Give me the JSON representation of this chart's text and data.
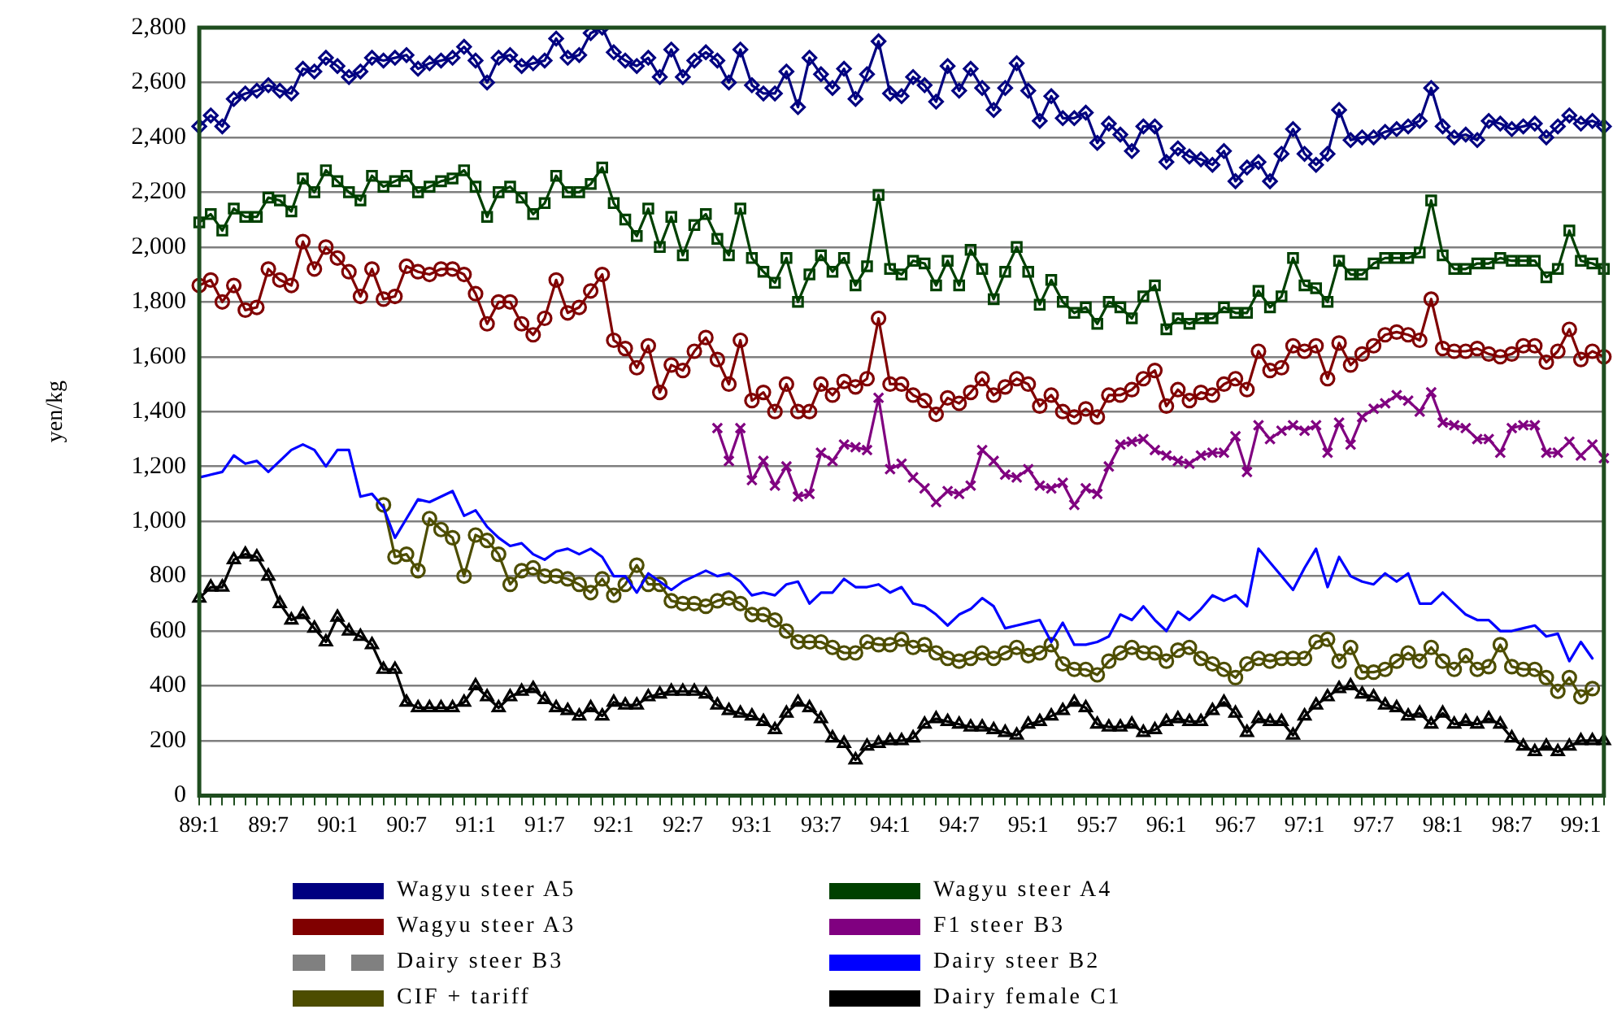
{
  "chart_data": {
    "type": "line",
    "ylabel": "yen/kg",
    "categories": [
      "89:1",
      null,
      null,
      null,
      null,
      null,
      "89:7",
      null,
      null,
      null,
      null,
      null,
      "90:1",
      null,
      null,
      null,
      null,
      null,
      "90:7",
      null,
      null,
      null,
      null,
      null,
      "91:1",
      null,
      null,
      null,
      null,
      null,
      "91:7",
      null,
      null,
      null,
      null,
      null,
      "92:1",
      null,
      null,
      null,
      null,
      null,
      "92:7",
      null,
      null,
      null,
      null,
      null,
      "93:1",
      null,
      null,
      null,
      null,
      null,
      "93:7",
      null,
      null,
      null,
      null,
      null,
      "94:1",
      null,
      null,
      null,
      null,
      null,
      "94:7",
      null,
      null,
      null,
      null,
      null,
      "95:1",
      null,
      null,
      null,
      null,
      null,
      "95:7",
      null,
      null,
      null,
      null,
      null,
      "96:1",
      null,
      null,
      null,
      null,
      null,
      "96:7",
      null,
      null,
      null,
      null,
      null,
      "97:1",
      null,
      null,
      null,
      null,
      null,
      "97:7",
      null,
      null,
      null,
      null,
      null,
      "98:1",
      null,
      null,
      null,
      null,
      null,
      "98:7",
      null,
      null,
      null,
      null,
      null,
      "99:1",
      null,
      null
    ],
    "ylim": [
      0,
      2800
    ],
    "yticks": [
      0,
      200,
      400,
      600,
      800,
      {
        "value": 1000,
        "label": "1,000"
      },
      {
        "value": 1200,
        "label": "1,200"
      },
      {
        "value": 1400,
        "label": "1,400"
      },
      {
        "value": 1600,
        "label": "1,600"
      },
      {
        "value": 1800,
        "label": "1,800"
      },
      {
        "value": 2000,
        "label": "2,000"
      },
      {
        "value": 2200,
        "label": "2,200"
      },
      {
        "value": 2400,
        "label": "2,400"
      },
      {
        "value": 2600,
        "label": "2,600"
      },
      {
        "value": 2800,
        "label": "2,800"
      }
    ],
    "grid": "y",
    "legend": "bottom",
    "series": [
      {
        "name": "Wagyu steer A5",
        "color": "#000080",
        "marker": "diamond",
        "values": [
          2440,
          2480,
          2440,
          2540,
          2560,
          2570,
          2590,
          2570,
          2560,
          2650,
          2640,
          2690,
          2660,
          2620,
          2640,
          2690,
          2680,
          2690,
          2700,
          2650,
          2670,
          2680,
          2690,
          2730,
          2680,
          2600,
          2690,
          2700,
          2660,
          2670,
          2680,
          2760,
          2690,
          2700,
          2780,
          2800,
          2710,
          2680,
          2660,
          2690,
          2620,
          2720,
          2620,
          2680,
          2710,
          2680,
          2600,
          2720,
          2590,
          2560,
          2560,
          2640,
          2510,
          2690,
          2630,
          2580,
          2650,
          2540,
          2630,
          2750,
          2560,
          2550,
          2620,
          2590,
          2530,
          2660,
          2570,
          2650,
          2580,
          2500,
          2580,
          2670,
          2570,
          2460,
          2550,
          2470,
          2470,
          2490,
          2380,
          2450,
          2410,
          2350,
          2440,
          2440,
          2310,
          2360,
          2330,
          2320,
          2300,
          2350,
          2240,
          2290,
          2310,
          2240,
          2340,
          2430,
          2340,
          2300,
          2340,
          2500,
          2390,
          2400,
          2400,
          2420,
          2430,
          2440,
          2460,
          2580,
          2440,
          2400,
          2410,
          2390,
          2460,
          2450,
          2430,
          2440,
          2450,
          2400,
          2440,
          2480,
          2450,
          2460,
          2440
        ]
      },
      {
        "name": "Wagyu steer A4",
        "color": "#004000",
        "marker": "square",
        "values": [
          2090,
          2120,
          2060,
          2140,
          2110,
          2110,
          2180,
          2170,
          2130,
          2250,
          2200,
          2280,
          2240,
          2200,
          2170,
          2260,
          2220,
          2240,
          2260,
          2200,
          2220,
          2240,
          2250,
          2280,
          2220,
          2110,
          2200,
          2220,
          2180,
          2120,
          2160,
          2260,
          2200,
          2200,
          2230,
          2290,
          2160,
          2100,
          2040,
          2140,
          2000,
          2110,
          1970,
          2080,
          2120,
          2030,
          1970,
          2140,
          1960,
          1910,
          1870,
          1960,
          1800,
          1900,
          1970,
          1910,
          1960,
          1860,
          1930,
          2190,
          1920,
          1900,
          1950,
          1940,
          1860,
          1950,
          1860,
          1990,
          1920,
          1810,
          1910,
          2000,
          1910,
          1790,
          1880,
          1800,
          1760,
          1780,
          1720,
          1800,
          1780,
          1740,
          1820,
          1860,
          1700,
          1740,
          1720,
          1740,
          1740,
          1780,
          1760,
          1760,
          1840,
          1780,
          1820,
          1960,
          1860,
          1850,
          1800,
          1950,
          1900,
          1900,
          1940,
          1960,
          1960,
          1960,
          1980,
          2170,
          1970,
          1920,
          1920,
          1940,
          1940,
          1960,
          1950,
          1950,
          1950,
          1890,
          1920,
          2060,
          1950,
          1940,
          1920
        ]
      },
      {
        "name": "Wagyu steer A3",
        "color": "#800000",
        "marker": "circle",
        "values": [
          1860,
          1880,
          1800,
          1860,
          1770,
          1780,
          1920,
          1880,
          1860,
          2020,
          1920,
          2000,
          1960,
          1910,
          1820,
          1920,
          1810,
          1820,
          1930,
          1910,
          1900,
          1920,
          1920,
          1900,
          1830,
          1720,
          1800,
          1800,
          1720,
          1680,
          1740,
          1880,
          1760,
          1780,
          1840,
          1900,
          1660,
          1630,
          1560,
          1640,
          1470,
          1570,
          1550,
          1620,
          1670,
          1590,
          1500,
          1660,
          1440,
          1470,
          1400,
          1500,
          1400,
          1400,
          1500,
          1460,
          1510,
          1490,
          1520,
          1740,
          1500,
          1500,
          1460,
          1440,
          1390,
          1450,
          1430,
          1470,
          1520,
          1460,
          1490,
          1520,
          1500,
          1420,
          1460,
          1400,
          1380,
          1410,
          1380,
          1460,
          1460,
          1480,
          1520,
          1550,
          1420,
          1480,
          1440,
          1470,
          1460,
          1500,
          1520,
          1480,
          1620,
          1550,
          1560,
          1640,
          1620,
          1640,
          1520,
          1650,
          1570,
          1610,
          1640,
          1680,
          1690,
          1680,
          1660,
          1810,
          1630,
          1620,
          1620,
          1630,
          1610,
          1600,
          1610,
          1640,
          1640,
          1580,
          1620,
          1700,
          1590,
          1620,
          1600
        ]
      },
      {
        "name": "F1 steer B3",
        "color": "#800080",
        "marker": "cross",
        "values": [
          null,
          null,
          null,
          null,
          null,
          null,
          null,
          null,
          null,
          null,
          null,
          null,
          null,
          null,
          null,
          null,
          null,
          null,
          null,
          null,
          null,
          null,
          null,
          null,
          null,
          null,
          null,
          null,
          null,
          null,
          null,
          null,
          null,
          null,
          null,
          null,
          null,
          null,
          null,
          null,
          null,
          null,
          null,
          null,
          null,
          1340,
          1220,
          1340,
          1150,
          1220,
          1130,
          1200,
          1090,
          1100,
          1250,
          1220,
          1280,
          1270,
          1260,
          1450,
          1190,
          1210,
          1160,
          1120,
          1070,
          1110,
          1100,
          1130,
          1260,
          1220,
          1170,
          1160,
          1190,
          1130,
          1120,
          1140,
          1060,
          1120,
          1100,
          1200,
          1280,
          1290,
          1300,
          1260,
          1240,
          1220,
          1210,
          1240,
          1250,
          1250,
          1310,
          1180,
          1350,
          1300,
          1330,
          1350,
          1330,
          1350,
          1250,
          1360,
          1280,
          1380,
          1410,
          1430,
          1460,
          1440,
          1400,
          1470,
          1360,
          1350,
          1340,
          1300,
          1300,
          1250,
          1340,
          1350,
          1350,
          1250,
          1250,
          1290,
          1240,
          1280,
          1230
        ]
      },
      {
        "name": "Dairy steer B3",
        "color": "#808080",
        "marker": "none",
        "line_style": "dashed",
        "values": [
          null,
          null,
          null,
          null,
          null,
          null,
          null,
          null,
          null,
          null,
          null,
          null,
          null,
          null,
          null,
          null,
          null,
          null,
          null,
          null,
          null,
          null,
          null,
          null,
          null,
          null,
          null,
          null,
          null,
          null,
          null,
          null,
          null,
          null,
          null,
          null,
          null,
          null,
          null,
          null,
          null,
          null,
          null,
          null,
          null,
          null,
          null,
          null,
          null,
          null,
          null,
          null,
          null,
          null,
          null,
          null,
          null,
          null,
          null,
          null,
          null,
          null,
          null,
          null,
          null,
          null,
          null,
          null,
          null,
          null,
          null,
          null,
          null,
          null,
          null,
          null,
          null,
          null,
          null,
          null,
          null,
          null,
          null,
          null,
          null,
          null,
          null,
          null,
          null,
          null,
          null,
          null,
          null,
          null,
          null,
          null,
          null,
          null,
          null,
          null,
          null,
          null,
          null,
          null,
          null,
          null,
          null,
          null,
          null,
          null,
          null,
          null,
          null,
          null,
          null,
          null,
          null,
          null,
          null,
          null,
          null,
          null,
          null
        ]
      },
      {
        "name": "Dairy steer B2",
        "color": "#0000ff",
        "marker": "none",
        "values": [
          1160,
          1170,
          1180,
          1240,
          1210,
          1220,
          1180,
          1220,
          1260,
          1280,
          1260,
          1200,
          1260,
          1260,
          1090,
          1100,
          1050,
          940,
          1010,
          1080,
          1070,
          1090,
          1110,
          1020,
          1040,
          980,
          940,
          910,
          920,
          880,
          860,
          890,
          900,
          880,
          900,
          870,
          800,
          800,
          740,
          810,
          780,
          750,
          780,
          800,
          820,
          800,
          810,
          780,
          730,
          740,
          730,
          770,
          780,
          700,
          740,
          740,
          790,
          760,
          760,
          770,
          740,
          760,
          700,
          690,
          660,
          620,
          660,
          680,
          720,
          690,
          610,
          620,
          630,
          640,
          560,
          630,
          550,
          550,
          560,
          580,
          660,
          640,
          690,
          640,
          600,
          670,
          640,
          680,
          730,
          710,
          730,
          690,
          900,
          850,
          800,
          750,
          830,
          900,
          760,
          870,
          800,
          780,
          770,
          810,
          780,
          810,
          700,
          700,
          740,
          700,
          660,
          640,
          640,
          600,
          600,
          610,
          620,
          580,
          590,
          490,
          560,
          500,
          null
        ]
      },
      {
        "name": "CIF + tariff",
        "color": "#4d4d00",
        "marker": "circle",
        "values": [
          null,
          null,
          null,
          null,
          null,
          null,
          null,
          null,
          null,
          null,
          null,
          null,
          null,
          null,
          null,
          null,
          1060,
          870,
          880,
          820,
          1010,
          970,
          940,
          800,
          950,
          930,
          880,
          770,
          820,
          830,
          800,
          800,
          790,
          770,
          740,
          790,
          730,
          770,
          840,
          770,
          770,
          710,
          700,
          700,
          690,
          710,
          720,
          700,
          660,
          660,
          640,
          600,
          560,
          560,
          560,
          540,
          520,
          520,
          560,
          550,
          550,
          570,
          540,
          550,
          520,
          500,
          490,
          500,
          520,
          500,
          520,
          540,
          510,
          520,
          550,
          480,
          460,
          460,
          440,
          490,
          520,
          540,
          520,
          520,
          490,
          530,
          540,
          500,
          480,
          460,
          430,
          480,
          500,
          490,
          500,
          500,
          500,
          560,
          570,
          490,
          540,
          450,
          450,
          460,
          490,
          520,
          490,
          540,
          490,
          460,
          510,
          460,
          470,
          550,
          470,
          460,
          460,
          430,
          380,
          430,
          360,
          390,
          null
        ]
      },
      {
        "name": "Dairy female C1",
        "color": "#000000",
        "marker": "triangle",
        "values": [
          720,
          760,
          760,
          860,
          880,
          870,
          800,
          700,
          640,
          660,
          610,
          560,
          650,
          600,
          580,
          550,
          460,
          460,
          340,
          320,
          320,
          320,
          320,
          340,
          400,
          360,
          320,
          360,
          380,
          390,
          350,
          320,
          310,
          290,
          320,
          290,
          340,
          330,
          330,
          360,
          370,
          380,
          380,
          380,
          370,
          330,
          310,
          300,
          290,
          270,
          240,
          300,
          340,
          320,
          280,
          210,
          190,
          130,
          180,
          190,
          200,
          200,
          210,
          260,
          280,
          270,
          260,
          250,
          250,
          240,
          230,
          220,
          260,
          270,
          290,
          310,
          340,
          320,
          260,
          250,
          250,
          260,
          230,
          240,
          270,
          280,
          270,
          270,
          310,
          340,
          300,
          230,
          280,
          270,
          270,
          220,
          290,
          330,
          360,
          390,
          400,
          370,
          360,
          330,
          320,
          290,
          300,
          260,
          300,
          260,
          270,
          260,
          280,
          260,
          210,
          180,
          160,
          180,
          160,
          180,
          200,
          200,
          200
        ]
      }
    ]
  }
}
